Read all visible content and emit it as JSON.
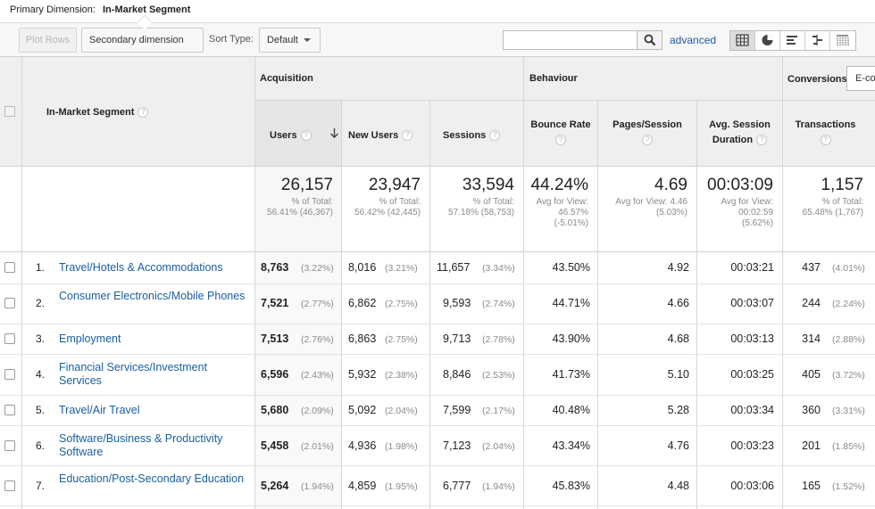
{
  "primary": {
    "label": "Primary Dimension:",
    "value": "In-Market Segment"
  },
  "toolbar": {
    "plot_rows": "Plot Rows",
    "secondary_dimension": "Secondary dimension",
    "sort_type_label": "Sort Type:",
    "sort_type_value": "Default",
    "search_value": "",
    "advanced": "advanced"
  },
  "groups": {
    "acquisition": "Acquisition",
    "behaviour": "Behaviour",
    "conversions": "Conversions",
    "ecommerce_select": "E-commerce"
  },
  "columns": {
    "dimension": "In-Market Segment",
    "users": "Users",
    "new_users": "New Users",
    "sessions": "Sessions",
    "bounce_rate": "Bounce Rate",
    "pages_session": "Pages/Session",
    "avg_session_1": "Avg. Session",
    "avg_session_2": "Duration",
    "transactions": "Transactions"
  },
  "totals": {
    "users": {
      "value": "26,157",
      "l1": "% of Total:",
      "l2": "56.41% (46,367)"
    },
    "new_users": {
      "value": "23,947",
      "l1": "% of Total:",
      "l2": "56.42% (42,445)"
    },
    "sessions": {
      "value": "33,594",
      "l1": "% of Total:",
      "l2": "57.18% (58,753)"
    },
    "bounce_rate": {
      "value": "44.24%",
      "l1": "Avg for View:",
      "l2": "46.57%",
      "l3": "(-5.01%)"
    },
    "pages_session": {
      "value": "4.69",
      "l1": "Avg for View: 4.46",
      "l2": "(5.03%)"
    },
    "avg_session": {
      "value": "00:03:09",
      "l1": "Avg for View:",
      "l2": "00:02:59",
      "l3": "(5.62%)"
    },
    "transactions": {
      "value": "1,157",
      "l1": "% of Total:",
      "l2": "65.48% (1,767)"
    }
  },
  "rows": [
    {
      "idx": "1.",
      "segment": "Travel/Hotels & Accommodations",
      "users": "8,763",
      "users_pct": "(3.22%)",
      "new_users": "8,016",
      "new_users_pct": "(3.21%)",
      "sessions": "11,657",
      "sessions_pct": "(3.34%)",
      "bounce": "43.50%",
      "pages": "4.92",
      "duration": "00:03:21",
      "transactions": "437",
      "transactions_pct": "(4.01%)"
    },
    {
      "idx": "2.",
      "segment": "Consumer Electronics/Mobile Phones",
      "users": "7,521",
      "users_pct": "(2.77%)",
      "new_users": "6,862",
      "new_users_pct": "(2.75%)",
      "sessions": "9,593",
      "sessions_pct": "(2.74%)",
      "bounce": "44.71%",
      "pages": "4.66",
      "duration": "00:03:07",
      "transactions": "244",
      "transactions_pct": "(2.24%)"
    },
    {
      "idx": "3.",
      "segment": "Employment",
      "users": "7,513",
      "users_pct": "(2.76%)",
      "new_users": "6,863",
      "new_users_pct": "(2.75%)",
      "sessions": "9,713",
      "sessions_pct": "(2.78%)",
      "bounce": "43.90%",
      "pages": "4.68",
      "duration": "00:03:13",
      "transactions": "314",
      "transactions_pct": "(2.88%)"
    },
    {
      "idx": "4.",
      "segment": "Financial Services/Investment Services",
      "users": "6,596",
      "users_pct": "(2.43%)",
      "new_users": "5,932",
      "new_users_pct": "(2.38%)",
      "sessions": "8,846",
      "sessions_pct": "(2.53%)",
      "bounce": "41.73%",
      "pages": "5.10",
      "duration": "00:03:25",
      "transactions": "405",
      "transactions_pct": "(3.72%)"
    },
    {
      "idx": "5.",
      "segment": "Travel/Air Travel",
      "users": "5,680",
      "users_pct": "(2.09%)",
      "new_users": "5,092",
      "new_users_pct": "(2.04%)",
      "sessions": "7,599",
      "sessions_pct": "(2.17%)",
      "bounce": "40.48%",
      "pages": "5.28",
      "duration": "00:03:34",
      "transactions": "360",
      "transactions_pct": "(3.31%)"
    },
    {
      "idx": "6.",
      "segment": "Software/Business & Productivity Software",
      "users": "5,458",
      "users_pct": "(2.01%)",
      "new_users": "4,936",
      "new_users_pct": "(1.98%)",
      "sessions": "7,123",
      "sessions_pct": "(2.04%)",
      "bounce": "43.34%",
      "pages": "4.76",
      "duration": "00:03:23",
      "transactions": "201",
      "transactions_pct": "(1.85%)"
    },
    {
      "idx": "7.",
      "segment": "Education/Post-Secondary Education",
      "users": "5,264",
      "users_pct": "(1.94%)",
      "new_users": "4,859",
      "new_users_pct": "(1.95%)",
      "sessions": "6,777",
      "sessions_pct": "(1.94%)",
      "bounce": "45.83%",
      "pages": "4.48",
      "duration": "00:03:06",
      "transactions": "165",
      "transactions_pct": "(1.52%)"
    }
  ],
  "icons": {
    "search": "search-icon",
    "sort": "sort-desc-arrow-icon",
    "help": "help-icon"
  },
  "colors": {
    "link": "#1a5fa0",
    "header_bg": "#efefef",
    "border": "#d6d6d6"
  }
}
